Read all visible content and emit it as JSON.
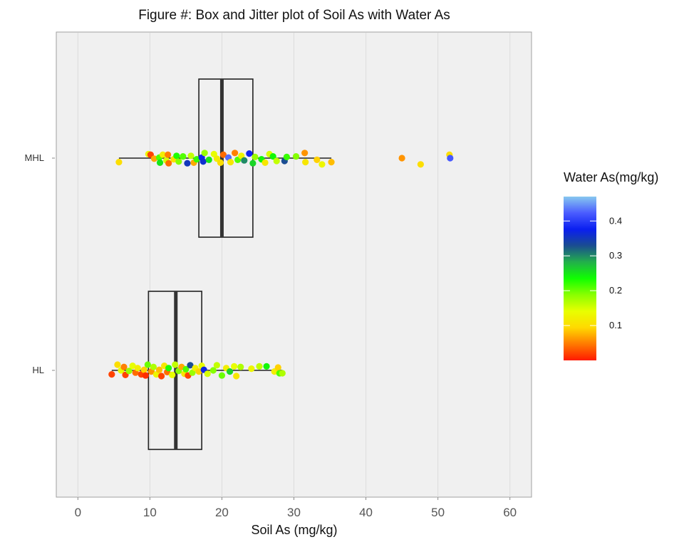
{
  "chart_data": {
    "type": "box-jitter",
    "title": "Figure #: Box and Jitter plot of Soil As with Water As",
    "xlabel": "Soil As (mg/kg)",
    "ylabel": "",
    "xlim": [
      -3,
      63
    ],
    "x_ticks": [
      0,
      10,
      20,
      30,
      40,
      50,
      60
    ],
    "grid": true,
    "orientation": "horizontal",
    "categories": [
      "MHL",
      "HL"
    ],
    "boxes": [
      {
        "category": "MHL",
        "whisker_low": 5.7,
        "q1": 16.8,
        "median": 20.0,
        "q3": 24.3,
        "whisker_high": 35.2
      },
      {
        "category": "HL",
        "whisker_low": 4.7,
        "q1": 9.8,
        "median": 13.6,
        "q3": 17.2,
        "whisker_high": 28.4
      }
    ],
    "color_legend": {
      "title": "Water As(mg/kg)",
      "ticks": [
        0.1,
        0.2,
        0.3,
        0.4
      ],
      "range": [
        0.0,
        0.47
      ],
      "colors": [
        "#ff1a00",
        "#ff7a00",
        "#ffd900",
        "#e8ff00",
        "#8aff00",
        "#10ff00",
        "#22b04a",
        "#1a4d90",
        "#0a1ff0",
        "#4a5cff",
        "#87c8ef"
      ]
    },
    "series": [
      {
        "category": "MHL",
        "points": [
          {
            "x": 5.7,
            "jitter": 0.35,
            "z": 0.1
          },
          {
            "x": 9.8,
            "jitter": -0.35,
            "z": 0.13
          },
          {
            "x": 10.1,
            "jitter": -0.3,
            "z": 0.02
          },
          {
            "x": 10.6,
            "jitter": 0.05,
            "z": 0.07
          },
          {
            "x": 11.3,
            "jitter": -0.05,
            "z": 0.21
          },
          {
            "x": 11.4,
            "jitter": 0.4,
            "z": 0.25
          },
          {
            "x": 11.8,
            "jitter": -0.3,
            "z": 0.12
          },
          {
            "x": 12.3,
            "jitter": 0.2,
            "z": 0.15
          },
          {
            "x": 12.5,
            "jitter": -0.3,
            "z": 0.05
          },
          {
            "x": 12.6,
            "jitter": 0.45,
            "z": 0.04
          },
          {
            "x": 13.3,
            "jitter": 0.1,
            "z": 0.1
          },
          {
            "x": 13.7,
            "jitter": -0.2,
            "z": 0.23
          },
          {
            "x": 14.0,
            "jitter": 0.3,
            "z": 0.19
          },
          {
            "x": 14.6,
            "jitter": -0.15,
            "z": 0.21
          },
          {
            "x": 15.2,
            "jitter": 0.45,
            "z": 0.35
          },
          {
            "x": 15.7,
            "jitter": -0.2,
            "z": 0.16
          },
          {
            "x": 16.1,
            "jitter": 0.4,
            "z": 0.07
          },
          {
            "x": 16.5,
            "jitter": 0.1,
            "z": 0.22
          },
          {
            "x": 17.2,
            "jitter": -0.05,
            "z": 0.38
          },
          {
            "x": 17.4,
            "jitter": 0.3,
            "z": 0.36
          },
          {
            "x": 17.6,
            "jitter": -0.45,
            "z": 0.18
          },
          {
            "x": 18.2,
            "jitter": 0.15,
            "z": 0.25
          },
          {
            "x": 18.9,
            "jitter": -0.35,
            "z": 0.14
          },
          {
            "x": 19.3,
            "jitter": 0.05,
            "z": 0.12
          },
          {
            "x": 19.8,
            "jitter": 0.4,
            "z": 0.1
          },
          {
            "x": 20.2,
            "jitter": -0.3,
            "z": 0.04
          },
          {
            "x": 20.9,
            "jitter": -0.05,
            "z": 0.43
          },
          {
            "x": 21.2,
            "jitter": 0.35,
            "z": 0.11
          },
          {
            "x": 21.8,
            "jitter": -0.45,
            "z": 0.05
          },
          {
            "x": 22.2,
            "jitter": 0.15,
            "z": 0.21
          },
          {
            "x": 22.7,
            "jitter": -0.2,
            "z": 0.13
          },
          {
            "x": 23.1,
            "jitter": 0.2,
            "z": 0.3
          },
          {
            "x": 23.8,
            "jitter": -0.4,
            "z": 0.38
          },
          {
            "x": 24.3,
            "jitter": 0.45,
            "z": 0.26
          },
          {
            "x": 24.6,
            "jitter": -0.1,
            "z": 0.18
          },
          {
            "x": 25.5,
            "jitter": 0.1,
            "z": 0.24
          },
          {
            "x": 26.0,
            "jitter": 0.4,
            "z": 0.11
          },
          {
            "x": 26.6,
            "jitter": -0.35,
            "z": 0.15
          },
          {
            "x": 27.1,
            "jitter": -0.15,
            "z": 0.24
          },
          {
            "x": 27.6,
            "jitter": 0.25,
            "z": 0.16
          },
          {
            "x": 28.7,
            "jitter": 0.25,
            "z": 0.33
          },
          {
            "x": 29.0,
            "jitter": -0.1,
            "z": 0.22
          },
          {
            "x": 30.3,
            "jitter": -0.15,
            "z": 0.19
          },
          {
            "x": 31.5,
            "jitter": -0.45,
            "z": 0.06
          },
          {
            "x": 31.6,
            "jitter": 0.35,
            "z": 0.11
          },
          {
            "x": 33.2,
            "jitter": 0.15,
            "z": 0.09
          },
          {
            "x": 33.9,
            "jitter": 0.55,
            "z": 0.13
          },
          {
            "x": 35.2,
            "jitter": 0.35,
            "z": 0.08
          },
          {
            "x": 45.0,
            "jitter": 0.0,
            "z": 0.06
          },
          {
            "x": 47.6,
            "jitter": 0.55,
            "z": 0.1
          },
          {
            "x": 51.6,
            "jitter": -0.3,
            "z": 0.1
          },
          {
            "x": 51.7,
            "jitter": 0.0,
            "z": 0.42
          }
        ]
      },
      {
        "category": "HL",
        "points": [
          {
            "x": 4.7,
            "jitter": 0.35,
            "z": 0.02
          },
          {
            "x": 5.5,
            "jitter": -0.5,
            "z": 0.1
          },
          {
            "x": 6.0,
            "jitter": 0.0,
            "z": 0.14
          },
          {
            "x": 6.4,
            "jitter": -0.3,
            "z": 0.05
          },
          {
            "x": 6.6,
            "jitter": 0.4,
            "z": 0.02
          },
          {
            "x": 7.1,
            "jitter": 0.05,
            "z": 0.18
          },
          {
            "x": 7.6,
            "jitter": -0.4,
            "z": 0.14
          },
          {
            "x": 8.0,
            "jitter": 0.2,
            "z": 0.04
          },
          {
            "x": 8.3,
            "jitter": -0.2,
            "z": 0.12
          },
          {
            "x": 8.8,
            "jitter": 0.35,
            "z": 0.02
          },
          {
            "x": 9.2,
            "jitter": -0.05,
            "z": 0.09
          },
          {
            "x": 9.4,
            "jitter": 0.45,
            "z": 0.01
          },
          {
            "x": 9.7,
            "jitter": -0.5,
            "z": 0.2
          },
          {
            "x": 10.2,
            "jitter": 0.1,
            "z": 0.06
          },
          {
            "x": 10.5,
            "jitter": -0.3,
            "z": 0.17
          },
          {
            "x": 10.9,
            "jitter": 0.35,
            "z": 0.13
          },
          {
            "x": 11.3,
            "jitter": -0.05,
            "z": 0.08
          },
          {
            "x": 11.6,
            "jitter": 0.5,
            "z": 0.02
          },
          {
            "x": 12.0,
            "jitter": -0.4,
            "z": 0.11
          },
          {
            "x": 12.4,
            "jitter": 0.15,
            "z": 0.04
          },
          {
            "x": 12.6,
            "jitter": -0.2,
            "z": 0.23
          },
          {
            "x": 13.1,
            "jitter": 0.4,
            "z": 0.14
          },
          {
            "x": 13.5,
            "jitter": -0.5,
            "z": 0.16
          },
          {
            "x": 14.0,
            "jitter": 0.05,
            "z": 0.19
          },
          {
            "x": 14.4,
            "jitter": -0.3,
            "z": 0.07
          },
          {
            "x": 14.8,
            "jitter": 0.3,
            "z": 0.11
          },
          {
            "x": 15.0,
            "jitter": -0.1,
            "z": 0.21
          },
          {
            "x": 15.3,
            "jitter": 0.45,
            "z": 0.02
          },
          {
            "x": 15.6,
            "jitter": -0.45,
            "z": 0.33
          },
          {
            "x": 15.9,
            "jitter": 0.2,
            "z": 0.18
          },
          {
            "x": 16.3,
            "jitter": -0.2,
            "z": 0.12
          },
          {
            "x": 16.8,
            "jitter": 0.1,
            "z": 0.09
          },
          {
            "x": 17.2,
            "jitter": -0.4,
            "z": 0.14
          },
          {
            "x": 17.5,
            "jitter": -0.05,
            "z": 0.37
          },
          {
            "x": 18.0,
            "jitter": 0.3,
            "z": 0.15
          },
          {
            "x": 18.8,
            "jitter": 0.0,
            "z": 0.19
          },
          {
            "x": 19.3,
            "jitter": -0.45,
            "z": 0.16
          },
          {
            "x": 20.0,
            "jitter": 0.45,
            "z": 0.2
          },
          {
            "x": 20.6,
            "jitter": -0.2,
            "z": 0.12
          },
          {
            "x": 21.1,
            "jitter": 0.1,
            "z": 0.26
          },
          {
            "x": 21.7,
            "jitter": -0.35,
            "z": 0.14
          },
          {
            "x": 22.0,
            "jitter": 0.5,
            "z": 0.11
          },
          {
            "x": 22.6,
            "jitter": -0.3,
            "z": 0.17
          },
          {
            "x": 24.1,
            "jitter": -0.15,
            "z": 0.13
          },
          {
            "x": 25.2,
            "jitter": -0.35,
            "z": 0.16
          },
          {
            "x": 26.2,
            "jitter": -0.35,
            "z": 0.24
          },
          {
            "x": 27.3,
            "jitter": 0.1,
            "z": 0.12
          },
          {
            "x": 27.8,
            "jitter": -0.25,
            "z": 0.09
          },
          {
            "x": 28.0,
            "jitter": 0.25,
            "z": 0.21
          },
          {
            "x": 28.4,
            "jitter": 0.25,
            "z": 0.17
          }
        ]
      }
    ]
  }
}
